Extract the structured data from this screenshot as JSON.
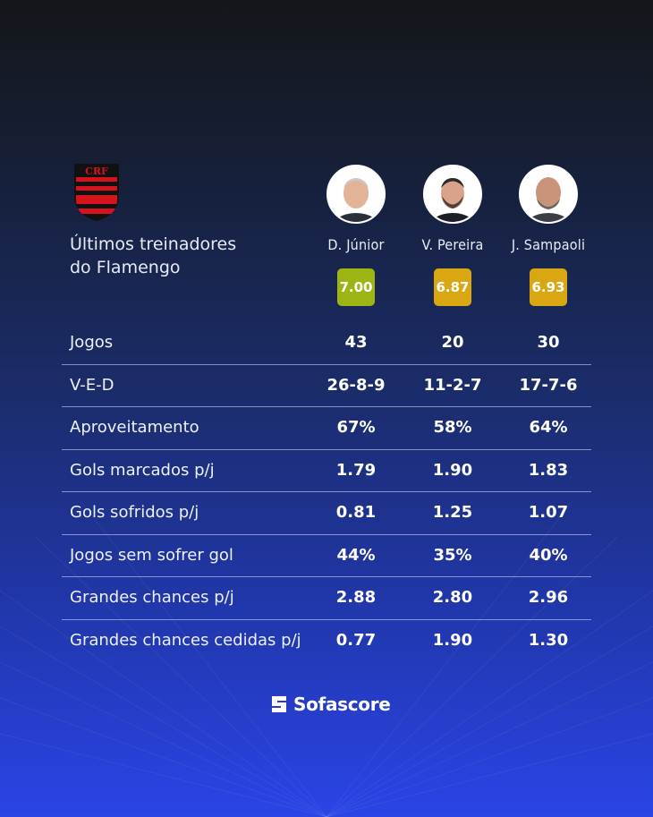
{
  "title_line1": "Últimos treinadores",
  "title_line2": "do Flamengo",
  "club_crest_icon": "flamengo-crest-icon",
  "coaches": [
    {
      "name": "D. Júnior",
      "rating": "7.00",
      "rating_color": "#9cb515"
    },
    {
      "name": "V. Pereira",
      "rating": "6.87",
      "rating_color": "#d8a711"
    },
    {
      "name": "J. Sampaoli",
      "rating": "6.93",
      "rating_color": "#d8a711"
    }
  ],
  "rows": [
    {
      "label": "Jogos",
      "values": [
        "43",
        "20",
        "30"
      ]
    },
    {
      "label": "V-E-D",
      "values": [
        "26-8-9",
        "11-2-7",
        "17-7-6"
      ]
    },
    {
      "label": "Aproveitamento",
      "values": [
        "67%",
        "58%",
        "64%"
      ]
    },
    {
      "label": "Gols marcados p/j",
      "values": [
        "1.79",
        "1.90",
        "1.83"
      ]
    },
    {
      "label": "Gols sofridos p/j",
      "values": [
        "0.81",
        "1.25",
        "1.07"
      ]
    },
    {
      "label": "Jogos sem sofrer gol",
      "values": [
        "44%",
        "35%",
        "40%"
      ]
    },
    {
      "label": "Grandes chances p/j",
      "values": [
        "2.88",
        "2.80",
        "2.96"
      ]
    },
    {
      "label": "Grandes chances cedidas p/j",
      "values": [
        "0.77",
        "1.90",
        "1.30"
      ]
    }
  ],
  "brand": "Sofascore",
  "brand_icon": "sofascore-logo-icon"
}
